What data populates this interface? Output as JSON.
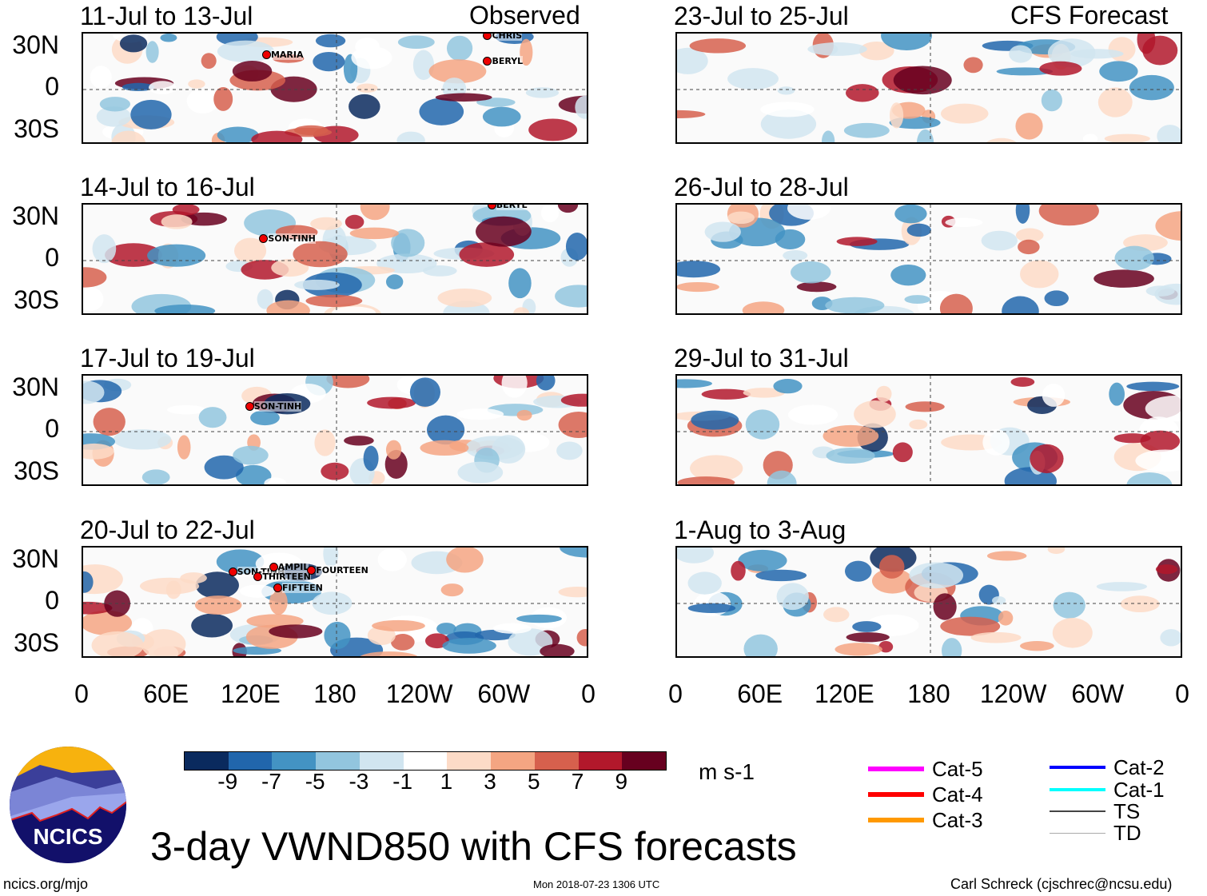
{
  "figure": {
    "title": "3-day VWND850 with CFS forecasts",
    "units": "m s-1",
    "site": "ncics.org/mjo",
    "timestamp": "Mon 2018-07-23 1306 UTC",
    "author": "Carl Schreck (cjschrec@ncsu.edu)",
    "logo_text": "NCICS",
    "observed_label": "Observed",
    "forecast_label": "CFS Forecast"
  },
  "chart_data": {
    "type": "heatmap",
    "variable": "850 hPa meridional wind anomaly",
    "lat_ticks": [
      "30N",
      "0",
      "30S"
    ],
    "lon_ticks": [
      "0",
      "60E",
      "120E",
      "180",
      "120W",
      "60W",
      "0"
    ],
    "colorbar": {
      "levels": [
        -9,
        -7,
        -5,
        -3,
        -1,
        1,
        3,
        5,
        7,
        9
      ],
      "labels": [
        "-9",
        "-7",
        "-5",
        "-3",
        "-1",
        "1",
        "3",
        "5",
        "7",
        "9"
      ],
      "colors": [
        "#0a2a5e",
        "#2166ac",
        "#4393c3",
        "#92c5de",
        "#d1e5f0",
        "#ffffff",
        "#fddbc7",
        "#f4a582",
        "#d6604d",
        "#b2182b",
        "#67001f"
      ]
    },
    "panels": [
      {
        "title": "11-Jul to 13-Jul",
        "type": "observed",
        "storms": [
          {
            "name": "MARIA",
            "lon": 130,
            "lat": 22
          },
          {
            "name": "CHRIS",
            "lon": 287,
            "lat": 34
          },
          {
            "name": "BERYL",
            "lon": 287,
            "lat": 18
          }
        ]
      },
      {
        "title": "14-Jul to 16-Jul",
        "type": "observed",
        "storms": [
          {
            "name": "BERYL",
            "lon": 290,
            "lat": 35
          },
          {
            "name": "SON-TINH",
            "lon": 128,
            "lat": 14
          }
        ]
      },
      {
        "title": "17-Jul to 19-Jul",
        "type": "observed",
        "storms": [
          {
            "name": "SON-TINH",
            "lon": 118,
            "lat": 16
          }
        ]
      },
      {
        "title": "20-Jul to 22-Jul",
        "type": "observed",
        "storms": [
          {
            "name": "SON-TINH",
            "lon": 106,
            "lat": 20
          },
          {
            "name": "AMPIL",
            "lon": 135,
            "lat": 23
          },
          {
            "name": "THIRTEEN",
            "lon": 124,
            "lat": 17
          },
          {
            "name": "FIFTEEN",
            "lon": 138,
            "lat": 10
          },
          {
            "name": "FOURTEEN",
            "lon": 162,
            "lat": 21
          }
        ]
      },
      {
        "title": "23-Jul to 25-Jul",
        "type": "forecast",
        "storms": []
      },
      {
        "title": "26-Jul to 28-Jul",
        "type": "forecast",
        "storms": []
      },
      {
        "title": "29-Jul to 31-Jul",
        "type": "forecast",
        "storms": []
      },
      {
        "title": "1-Aug to 3-Aug",
        "type": "forecast",
        "storms": []
      }
    ],
    "legend": [
      {
        "label": "Cat-5",
        "color": "#ff00ff"
      },
      {
        "label": "Cat-4",
        "color": "#ff0000"
      },
      {
        "label": "Cat-3",
        "color": "#ff9900"
      },
      {
        "label": "Cat-2",
        "color": "#0000ff"
      },
      {
        "label": "Cat-1",
        "color": "#00ffff"
      },
      {
        "label": "TS",
        "color": "#444444"
      },
      {
        "label": "TD",
        "color": "#aaaaaa"
      }
    ]
  }
}
